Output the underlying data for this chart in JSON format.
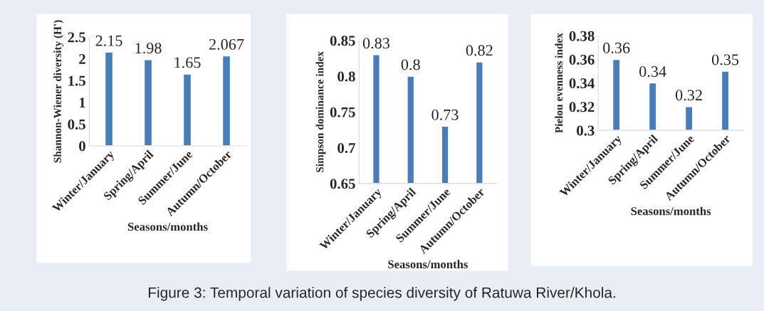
{
  "chart_data": [
    {
      "type": "bar",
      "categories": [
        "Winter/January",
        "Spring/April",
        "Summer/June",
        "Autumn/October"
      ],
      "values": [
        2.15,
        1.98,
        1.65,
        2.067
      ],
      "color": "#4a7ebb",
      "ylabel": "Shannon-Wiener diversity (H')",
      "xlabel": "Seasons/months",
      "ylim": [
        0,
        2.5
      ],
      "yticks": [
        0,
        0.5,
        1,
        1.5,
        2,
        2.5
      ],
      "data_labels": true,
      "grid": false,
      "annotations": [
        "Figure 3: Temporal variation of species diversity of Ratuwa River/Khola."
      ]
    },
    {
      "type": "bar",
      "categories": [
        "Winter/January",
        "Spring/April",
        "Summer/June",
        "Autumn/October"
      ],
      "values": [
        0.83,
        0.8,
        0.73,
        0.82
      ],
      "color": "#4a7ebb",
      "ylabel": "Simpson dominance index",
      "xlabel": "Seasons/months",
      "ylim": [
        0.65,
        0.85
      ],
      "yticks": [
        0.65,
        0.7,
        0.75,
        0.8,
        0.85
      ],
      "data_labels": true,
      "grid": false
    },
    {
      "type": "bar",
      "categories": [
        "Winter/January",
        "Spring/April",
        "Summer/June",
        "Autumn/October"
      ],
      "values": [
        0.36,
        0.34,
        0.32,
        0.35
      ],
      "color": "#4a7ebb",
      "ylabel": "Pielou evenness index",
      "xlabel": "Seasons/months",
      "ylim": [
        0.3,
        0.38
      ],
      "yticks": [
        0.3,
        0.32,
        0.34,
        0.36,
        0.38
      ],
      "data_labels": true,
      "grid": false
    }
  ]
}
